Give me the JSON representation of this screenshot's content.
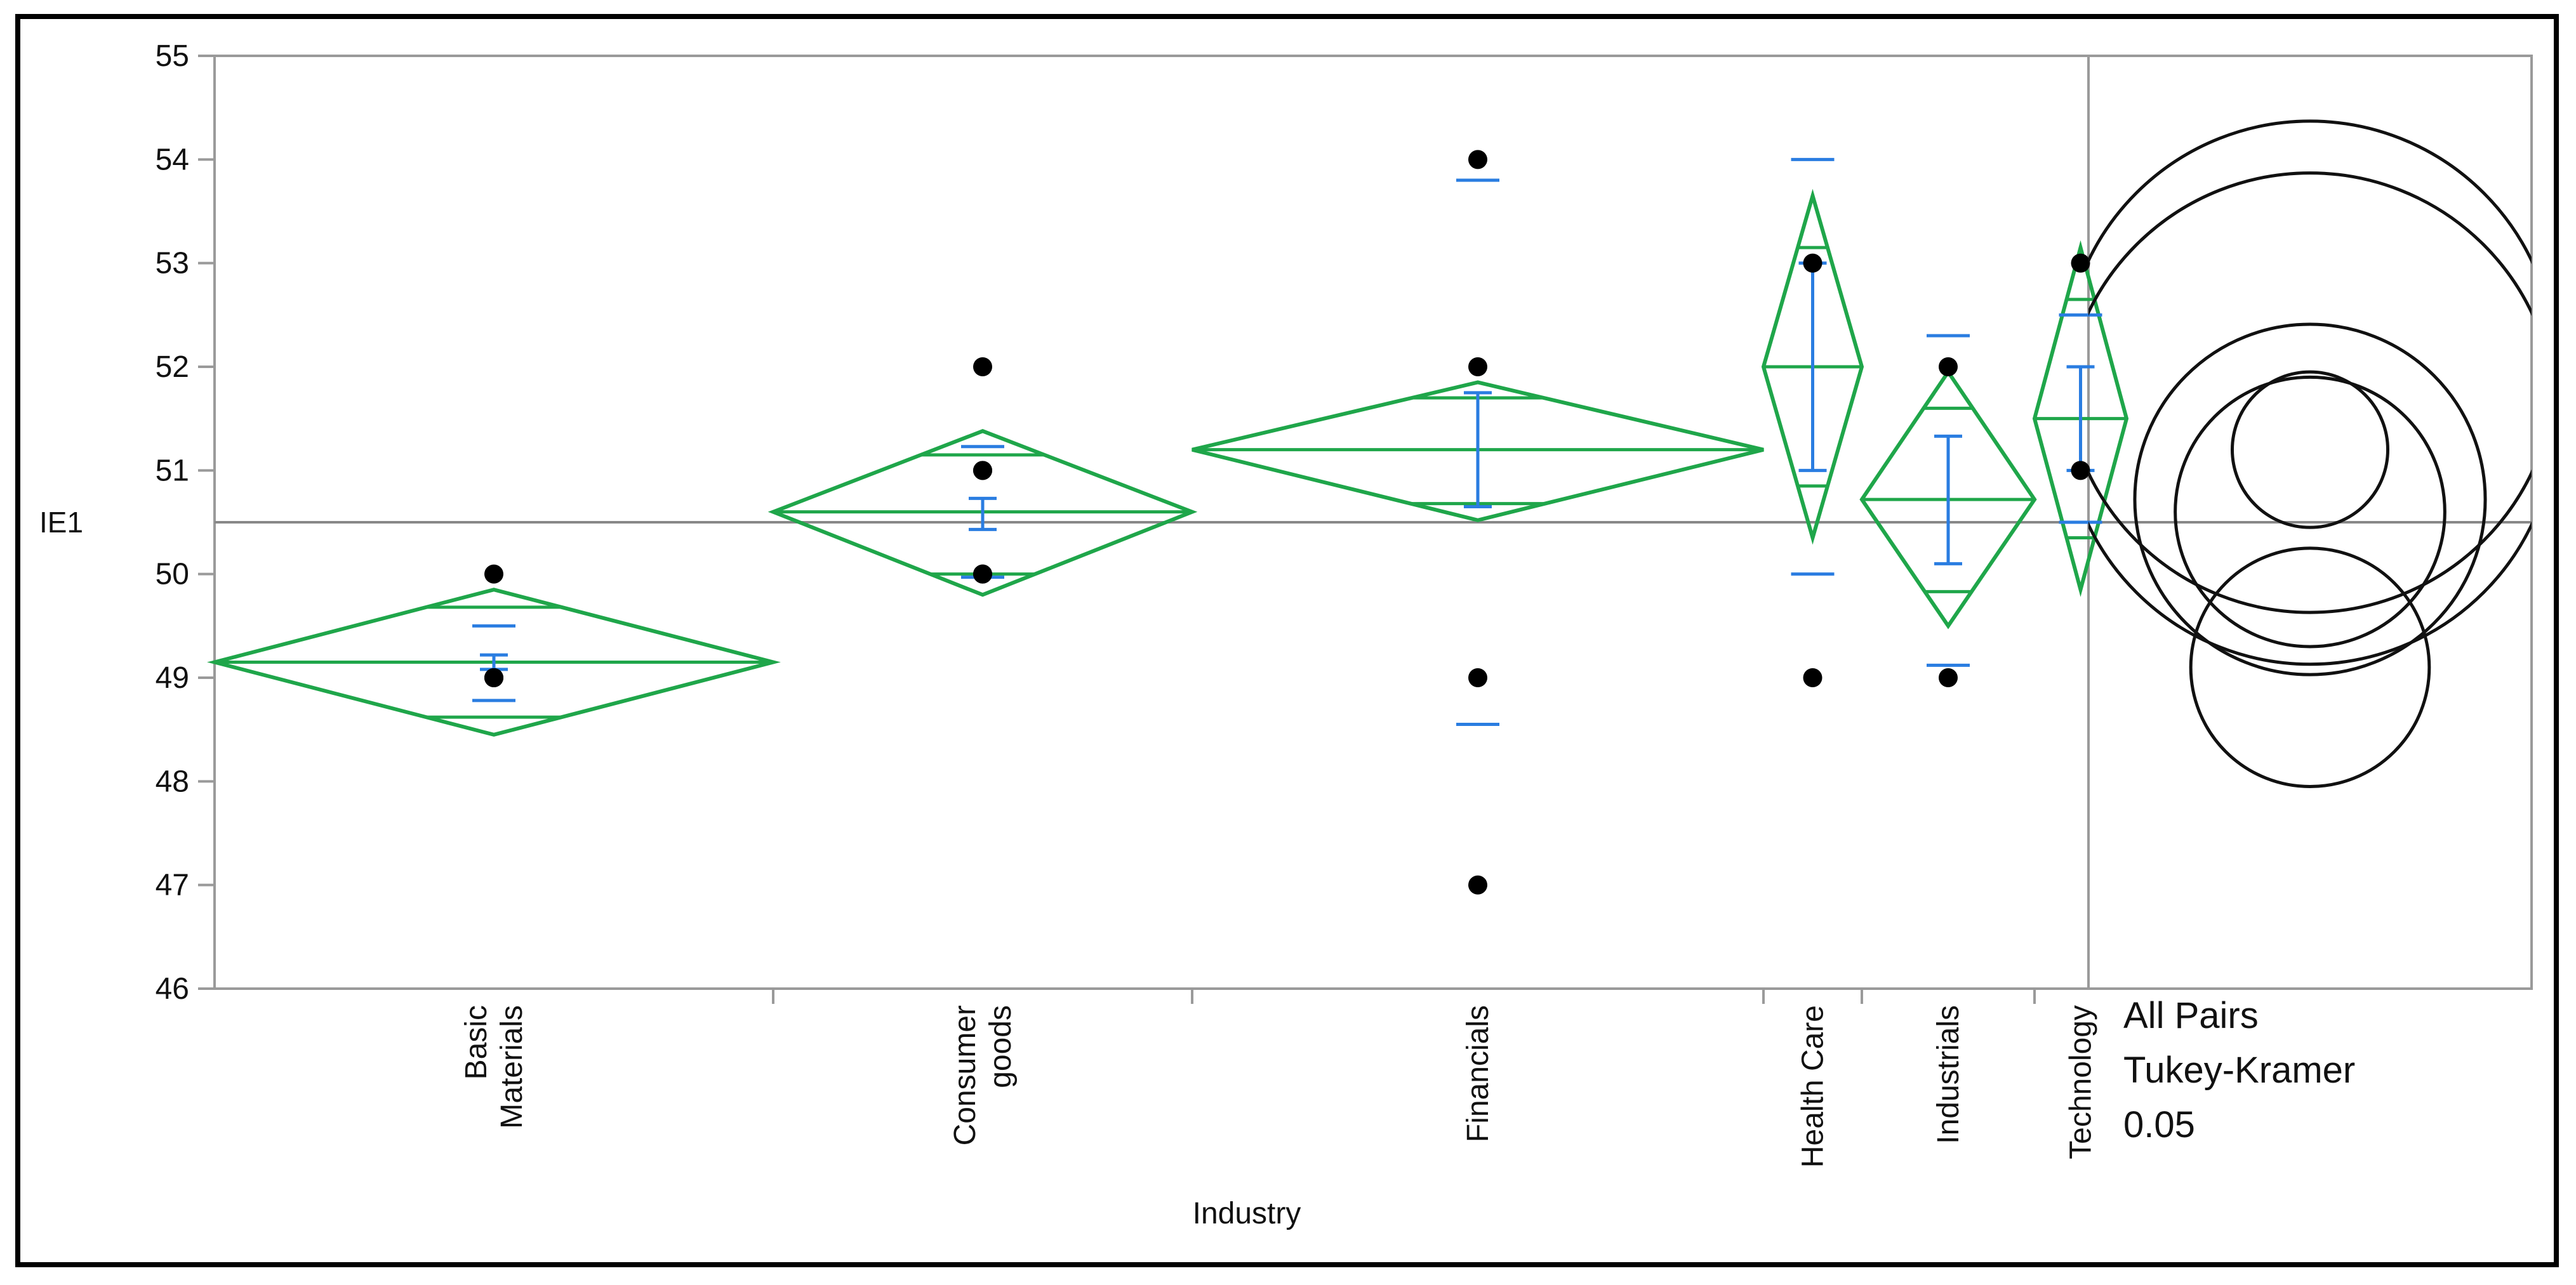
{
  "chart_data": {
    "type": "scatter",
    "title": "",
    "xlabel": "Industry",
    "ylabel": "IE1",
    "ylim": [
      46,
      55
    ],
    "yticks": [
      46,
      47,
      48,
      49,
      50,
      51,
      52,
      53,
      54,
      55
    ],
    "grand_mean": 50.5,
    "categories": [
      "Basic Materials",
      "Consumer goods",
      "Financials",
      "Health Care",
      "Industrials",
      "Technology"
    ],
    "category_label_lines": [
      [
        "Basic",
        "Materials"
      ],
      [
        "Consumer",
        "goods"
      ],
      [
        "Financials"
      ],
      [
        "Health Care"
      ],
      [
        "Industrials"
      ],
      [
        "Technology"
      ]
    ],
    "groups": [
      {
        "name": "Basic Materials",
        "points": [
          50,
          49,
          49,
          49
        ],
        "mean": 49.15,
        "ci": [
          48.45,
          49.85
        ],
        "overlap_marks": [
          48.62,
          49.68
        ],
        "sd_bars": [
          48.78,
          49.5
        ],
        "se_bar": [
          49.08,
          49.22
        ]
      },
      {
        "name": "Consumer goods",
        "points": [
          52,
          51,
          50,
          50,
          51
        ],
        "mean": 50.6,
        "ci": [
          49.8,
          51.38
        ],
        "overlap_marks": [
          50.0,
          51.15
        ],
        "sd_bars": [
          49.97,
          51.23
        ],
        "se_bar": [
          50.43,
          50.73
        ]
      },
      {
        "name": "Financials",
        "points": [
          54,
          52,
          49,
          47
        ],
        "mean": 51.2,
        "ci": [
          50.52,
          51.85
        ],
        "overlap_marks": [
          50.68,
          51.7
        ],
        "sd_bars": [
          48.55,
          53.8
        ],
        "se_bar": [
          50.65,
          51.75
        ]
      },
      {
        "name": "Health Care",
        "points": [
          53,
          49
        ],
        "mean": 52.0,
        "ci": [
          50.35,
          53.65
        ],
        "overlap_marks": [
          50.85,
          53.15
        ],
        "sd_bars": [
          50.0,
          54.0
        ],
        "se_bar": [
          51.0,
          53.0
        ]
      },
      {
        "name": "Industrials",
        "points": [
          52,
          49
        ],
        "mean": 50.72,
        "ci": [
          49.5,
          51.95
        ],
        "overlap_marks": [
          49.83,
          51.6
        ],
        "sd_bars": [
          49.12,
          52.3
        ],
        "se_bar": [
          50.1,
          51.33
        ]
      },
      {
        "name": "Technology",
        "points": [
          53,
          51
        ],
        "mean": 51.5,
        "ci": [
          49.85,
          53.15
        ],
        "overlap_marks": [
          50.35,
          52.65
        ],
        "sd_bars": [
          50.5,
          52.5
        ],
        "se_bar": [
          51.0,
          52.0
        ]
      }
    ],
    "comparison_circles": [
      {
        "center": 49.1,
        "radius": 1.15
      },
      {
        "center": 50.6,
        "radius": 1.3
      },
      {
        "center": 51.2,
        "radius": 0.75
      },
      {
        "center": 52.0,
        "radius": 2.37
      },
      {
        "center": 50.72,
        "radius": 1.69
      },
      {
        "center": 51.5,
        "radius": 2.37
      }
    ],
    "side_label_lines": [
      "All Pairs",
      "Tukey-Kramer",
      "0.05"
    ],
    "colors": {
      "diamond": "#1fa64a",
      "bars": "#2a7de1",
      "points": "#000000",
      "axis": "#9a9a9a",
      "mean_line": "#888888",
      "circles": "#111111"
    }
  }
}
